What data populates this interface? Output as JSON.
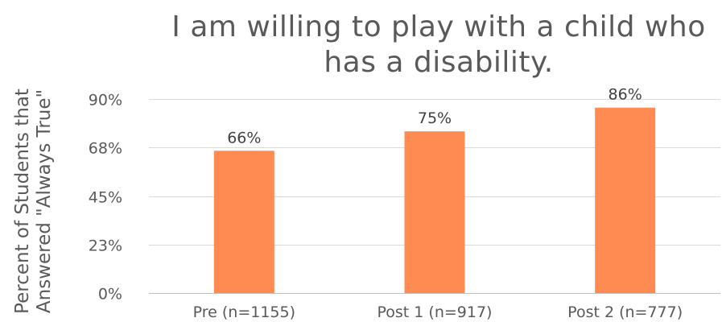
{
  "chart_data": {
    "type": "bar",
    "title": "I am willing to play with a child who has a disability.",
    "ylabel": "Percent of Students that Answered \"Always True\"",
    "xlabel": "",
    "categories": [
      "Pre (n=1155)",
      "Post 1 (n=917)",
      "Post 2 (n=777)"
    ],
    "values": [
      66,
      75,
      86
    ],
    "data_labels": [
      "66%",
      "75%",
      "86%"
    ],
    "y_ticks": [
      0,
      22.5,
      45,
      67.5,
      90
    ],
    "y_tick_labels": [
      "0%",
      "23%",
      "45%",
      "68%",
      "90%"
    ],
    "ylim": [
      0,
      90
    ],
    "grid": true,
    "legend": "none",
    "bar_color": "#FF8B52"
  }
}
